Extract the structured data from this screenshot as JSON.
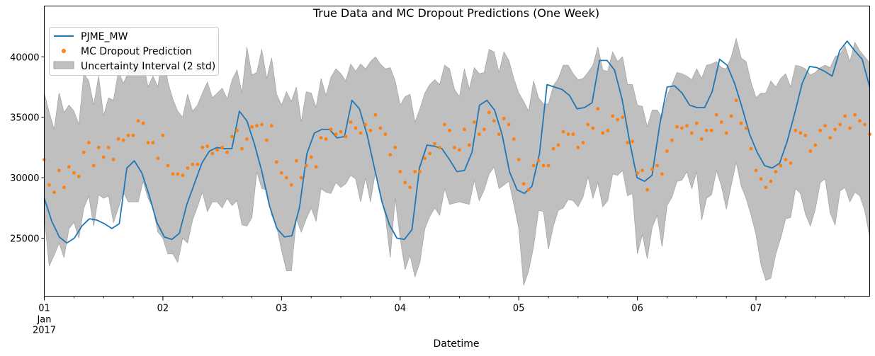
{
  "chart_data": {
    "type": "line",
    "title": "True Data and MC Dropout Predictions (One Week)",
    "xlabel": "Datetime",
    "ylabel": "",
    "x_range": [
      "2017-01-01 00:00",
      "2017-01-07 23:00"
    ],
    "ylim": [
      20200,
      44200
    ],
    "y_ticks": [
      25000,
      30000,
      35000,
      40000
    ],
    "y_tick_labels": [
      "25000",
      "30000",
      "35000",
      "40000"
    ],
    "x_ticks": [
      {
        "day": 1,
        "label": "01",
        "sub": [
          "Jan",
          "2017"
        ]
      },
      {
        "day": 2,
        "label": "02"
      },
      {
        "day": 3,
        "label": "03"
      },
      {
        "day": 4,
        "label": "04"
      },
      {
        "day": 5,
        "label": "05"
      },
      {
        "day": 6,
        "label": "06"
      },
      {
        "day": 7,
        "label": "07"
      }
    ],
    "grid": false,
    "legend_position": "top-left",
    "sampling": "every 2 hours starting 2017-01-01 00:00",
    "series": [
      {
        "name": "PJME_MW",
        "kind": "line",
        "color": "#1f77b4",
        "values": [
          28300,
          26400,
          25100,
          24600,
          25000,
          26000,
          26600,
          26500,
          26200,
          25800,
          26200,
          30800,
          31400,
          30400,
          28500,
          26300,
          25100,
          24900,
          25400,
          27800,
          29500,
          31200,
          32200,
          32500,
          32400,
          32400,
          35500,
          34700,
          32800,
          30500,
          27700,
          25800,
          25100,
          25200,
          27500,
          32000,
          33700,
          34000,
          34000,
          33300,
          33400,
          36400,
          35700,
          33600,
          30800,
          28000,
          26100,
          25000,
          24900,
          25700,
          30800,
          32700,
          32600,
          32400,
          31500,
          30500,
          30600,
          32100,
          36000,
          36400,
          35600,
          33600,
          30500,
          29000,
          28700,
          29300,
          32000,
          37700,
          37500,
          37300,
          36800,
          35700,
          35800,
          36200,
          39700,
          39700,
          38900,
          36500,
          33000,
          30000,
          29700,
          30200,
          34300,
          37500,
          37600,
          37000,
          36000,
          35800,
          35800,
          37100,
          39800,
          39300,
          37800,
          35800,
          33600,
          32100,
          31000,
          30800,
          31200,
          33000,
          35300,
          37800,
          39200,
          39100,
          38800,
          38400,
          40500,
          41300,
          40500,
          39800,
          37500
        ]
      },
      {
        "name": "MC Dropout Prediction",
        "kind": "scatter",
        "color": "#ff7f0e",
        "values": [
          31500,
          29400,
          28800,
          30600,
          29200,
          30900,
          30400,
          30100,
          32100,
          32900,
          31000,
          32500,
          31700,
          32500,
          31500,
          33200,
          33100,
          33500,
          33500,
          34700,
          34500,
          32900,
          32900,
          31600,
          33500,
          31000,
          30300,
          30300,
          30200,
          30800,
          31100,
          31100,
          32500,
          32600,
          32000,
          32300,
          32500,
          32100,
          33400,
          33900,
          32400,
          33200,
          34200,
          34300,
          34400,
          33100,
          34300,
          31300,
          30400,
          30000,
          29400,
          31400,
          30000,
          31000,
          31700,
          30900,
          33300,
          33200,
          34000,
          33600,
          33800,
          33400,
          34600,
          34100,
          33700,
          34400,
          33900,
          35200,
          34100,
          33600,
          31900,
          32500,
          30500,
          29600,
          29200,
          30500,
          30500,
          31600,
          32000,
          32800,
          32500,
          34400,
          33900,
          32500,
          32300,
          34000,
          32700,
          34600,
          33600,
          34000,
          35400,
          34700,
          33600,
          34900,
          34400,
          33200,
          31500,
          29500,
          29000,
          31000,
          31400,
          31000,
          31000,
          32400,
          32700,
          33800,
          33600,
          33600,
          32500,
          32900,
          34400,
          34100,
          35700,
          33700,
          33900,
          35100,
          34800,
          35000,
          32900,
          33000,
          30400,
          30600,
          29000,
          30700,
          31000,
          30300,
          32200,
          33100,
          34200,
          34100,
          34300,
          33700,
          34500,
          33200,
          33900,
          33900,
          35200,
          34600,
          33700,
          35100,
          36400,
          34500,
          34100,
          32400,
          30600,
          29900,
          29200,
          29700,
          30500,
          31000,
          31500,
          31200,
          33900,
          33700,
          33500,
          32200,
          32700,
          33900,
          34300,
          33300,
          34000,
          34400,
          35100,
          34100,
          35200,
          34700,
          34400,
          33600
        ]
      },
      {
        "name": "Uncertainty Interval (2 std)",
        "kind": "band",
        "color": "#bfbfbf",
        "lower": [
          26800,
          22700,
          23600,
          24600,
          23400,
          25800,
          26300,
          25000,
          27500,
          28500,
          26000,
          28600,
          28300,
          28500,
          26300,
          27500,
          28800,
          28000,
          28000,
          28000,
          29700,
          28300,
          27500,
          25500,
          25000,
          23700,
          23700,
          23000,
          25000,
          24600,
          26500,
          27600,
          28800,
          27200,
          28000,
          28000,
          27500,
          28300,
          27700,
          28100,
          26100,
          26000,
          26700,
          30500,
          29100,
          29000,
          26900,
          26000,
          24000,
          22300,
          22300,
          26600,
          25500,
          26600,
          27500,
          26400,
          29100,
          28800,
          28700,
          29600,
          29200,
          29500,
          30200,
          29900,
          28000,
          30000,
          28000,
          30500,
          28500,
          26900,
          23400,
          28300,
          25000,
          22400,
          23600,
          21800,
          23000,
          25800,
          26800,
          27500,
          26900,
          29100,
          27800,
          27900,
          28000,
          27900,
          27800,
          29800,
          28100,
          29000,
          30300,
          30900,
          29100,
          29400,
          29700,
          27800,
          25800,
          21100,
          22300,
          24300,
          27300,
          27200,
          24100,
          26000,
          27300,
          27500,
          28200,
          28100,
          27600,
          28400,
          30100,
          28300,
          29600,
          27600,
          28100,
          30300,
          30200,
          30600,
          28500,
          28700,
          23700,
          25300,
          23300,
          25900,
          26900,
          24300,
          27700,
          28400,
          29700,
          29800,
          30500,
          29100,
          30500,
          26500,
          28300,
          28600,
          30600,
          29300,
          27400,
          29400,
          31300,
          29300,
          28300,
          26900,
          25300,
          22800,
          21500,
          21700,
          23700,
          25000,
          26600,
          26700,
          29100,
          28700,
          27000,
          26000,
          27400,
          29600,
          29900,
          27100,
          26100,
          28900,
          29200,
          28000,
          28800,
          28500,
          27300,
          25100
        ]
      },
      {
        "name": "Uncertainty Interval (2 std) upper",
        "kind": "band-upper",
        "upper": [
          37000,
          35400,
          34000,
          37000,
          35400,
          36000,
          35500,
          34400,
          38600,
          38000,
          36000,
          38400,
          35100,
          36600,
          36400,
          38800,
          37800,
          38700,
          39100,
          40600,
          39500,
          37500,
          38400,
          37500,
          40700,
          37900,
          36500,
          35500,
          35000,
          36900,
          35500,
          36000,
          37000,
          37900,
          36600,
          37000,
          37400,
          36500,
          38100,
          38900,
          37000,
          40800,
          38500,
          38700,
          40600,
          38200,
          39900,
          36900,
          36000,
          37100,
          36300,
          37500,
          34600,
          37100,
          37000,
          35800,
          38200,
          36800,
          38300,
          39000,
          38600,
          38000,
          39400,
          38800,
          39400,
          39000,
          39600,
          40000,
          39400,
          39000,
          39100,
          38000,
          36000,
          36700,
          36900,
          34600,
          35700,
          37000,
          37700,
          38100,
          37700,
          39300,
          39000,
          37300,
          36700,
          39000,
          37300,
          39100,
          38600,
          38700,
          40600,
          40400,
          38700,
          40400,
          39700,
          38200,
          37000,
          36300,
          35500,
          38000,
          36600,
          36100,
          36100,
          37600,
          38200,
          39300,
          39300,
          38600,
          38100,
          38200,
          38700,
          39300,
          40800,
          38900,
          38800,
          40400,
          39600,
          40000,
          37700,
          37700,
          36000,
          35900,
          34200,
          35600,
          35600,
          35000,
          36800,
          37700,
          38700,
          38600,
          38400,
          38100,
          39000,
          38200,
          39300,
          39400,
          39600,
          39100,
          39000,
          40000,
          41500,
          39900,
          39600,
          37900,
          36600,
          37000,
          37000,
          38000,
          37500,
          38200,
          38600,
          37500,
          39300,
          39200,
          39000,
          38500,
          38700,
          39100,
          39300,
          39100,
          40000,
          40200,
          40900,
          39600,
          41200,
          40500,
          40000,
          39500
        ]
      }
    ]
  }
}
